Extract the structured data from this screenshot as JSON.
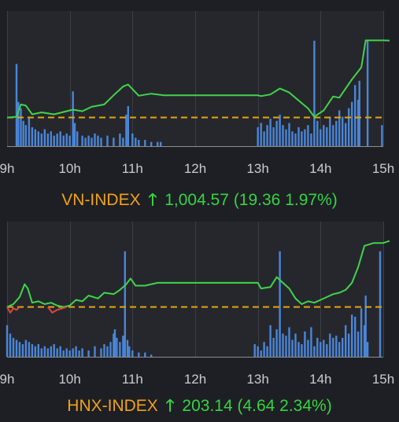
{
  "x_ticks": [
    "9h",
    "10h",
    "11h",
    "12h",
    "13h",
    "14h",
    "15h"
  ],
  "colors": {
    "background": "#1e1f24",
    "plot_background": "#26272d",
    "index_up": "#3fd54a",
    "index_down": "#e0453a",
    "reference": "#e4a50f",
    "volume": "#4a86d8",
    "label_name": "#f0a21a",
    "label_value": "#35d443"
  },
  "icons": {
    "change_direction": "arrow-up-icon"
  },
  "chart_data": [
    {
      "type": "line",
      "index_name": "VN-INDEX",
      "arrow": "🡑",
      "value_text": "1,004.57 (19.36 1.97%)",
      "close": 1004.57,
      "change": 19.36,
      "change_pct": 1.97,
      "reference": 985.21,
      "ylim": [
        978,
        1012
      ],
      "vol_max": 100,
      "x_ticks": [
        "9h",
        "10h",
        "11h",
        "12h",
        "13h",
        "14h",
        "15h"
      ],
      "grid": "vertical",
      "series": [
        {
          "values": [
            [
              9.0,
              985.2
            ],
            [
              9.15,
              985.4
            ],
            [
              9.22,
              988.5
            ],
            [
              9.3,
              988.2
            ],
            [
              9.4,
              986.0
            ],
            [
              9.55,
              986.5
            ],
            [
              9.75,
              986.0
            ],
            [
              9.9,
              986.6
            ],
            [
              10.05,
              987.2
            ],
            [
              10.2,
              986.8
            ],
            [
              10.35,
              987.9
            ],
            [
              10.55,
              988.5
            ],
            [
              10.7,
              990.8
            ],
            [
              10.85,
              993.0
            ],
            [
              10.93,
              993.5
            ],
            [
              11.1,
              990.7
            ],
            [
              11.3,
              991.2
            ],
            [
              11.5,
              990.8
            ],
            [
              12.0,
              990.8
            ],
            [
              12.5,
              990.8
            ],
            [
              13.0,
              990.8
            ],
            [
              13.05,
              990.6
            ],
            [
              13.2,
              991.0
            ],
            [
              13.35,
              992.5
            ],
            [
              13.5,
              991.5
            ],
            [
              13.65,
              989.5
            ],
            [
              13.8,
              987.5
            ],
            [
              13.9,
              985.4
            ],
            [
              14.05,
              987.0
            ],
            [
              14.2,
              990.5
            ],
            [
              14.3,
              990.2
            ],
            [
              14.5,
              994.8
            ],
            [
              14.65,
              997.8
            ],
            [
              14.72,
              1004.6
            ],
            [
              14.85,
              1004.6
            ],
            [
              15.0,
              1004.6
            ],
            [
              15.1,
              1004.57
            ]
          ]
        }
      ],
      "volume": [
        [
          9.15,
          78
        ],
        [
          9.18,
          42
        ],
        [
          9.22,
          36
        ],
        [
          9.26,
          24
        ],
        [
          9.3,
          20
        ],
        [
          9.35,
          28
        ],
        [
          9.4,
          18
        ],
        [
          9.45,
          16
        ],
        [
          9.5,
          14
        ],
        [
          9.55,
          12
        ],
        [
          9.6,
          16
        ],
        [
          9.65,
          12
        ],
        [
          9.7,
          14
        ],
        [
          9.75,
          10
        ],
        [
          9.8,
          12
        ],
        [
          9.85,
          14
        ],
        [
          9.9,
          10
        ],
        [
          9.95,
          12
        ],
        [
          10.0,
          10
        ],
        [
          10.05,
          52
        ],
        [
          10.08,
          22
        ],
        [
          10.12,
          14
        ],
        [
          10.2,
          10
        ],
        [
          10.25,
          8
        ],
        [
          10.3,
          10
        ],
        [
          10.35,
          8
        ],
        [
          10.4,
          12
        ],
        [
          10.45,
          10
        ],
        [
          10.5,
          8
        ],
        [
          10.6,
          10
        ],
        [
          10.7,
          8
        ],
        [
          10.8,
          12
        ],
        [
          10.85,
          8
        ],
        [
          10.9,
          30
        ],
        [
          10.93,
          38
        ],
        [
          11.0,
          12
        ],
        [
          11.05,
          8
        ],
        [
          11.1,
          6
        ],
        [
          11.2,
          6
        ],
        [
          11.3,
          4
        ],
        [
          11.4,
          4
        ],
        [
          11.45,
          4
        ],
        [
          13.0,
          18
        ],
        [
          13.05,
          22
        ],
        [
          13.1,
          14
        ],
        [
          13.15,
          20
        ],
        [
          13.2,
          26
        ],
        [
          13.25,
          18
        ],
        [
          13.3,
          24
        ],
        [
          13.35,
          30
        ],
        [
          13.4,
          20
        ],
        [
          13.45,
          16
        ],
        [
          13.5,
          22
        ],
        [
          13.55,
          14
        ],
        [
          13.6,
          12
        ],
        [
          13.65,
          18
        ],
        [
          13.7,
          14
        ],
        [
          13.75,
          16
        ],
        [
          13.8,
          20
        ],
        [
          13.85,
          12
        ],
        [
          13.9,
          100
        ],
        [
          13.95,
          24
        ],
        [
          14.0,
          16
        ],
        [
          14.05,
          20
        ],
        [
          14.1,
          18
        ],
        [
          14.15,
          28
        ],
        [
          14.2,
          20
        ],
        [
          14.25,
          24
        ],
        [
          14.3,
          34
        ],
        [
          14.35,
          28
        ],
        [
          14.4,
          22
        ],
        [
          14.45,
          36
        ],
        [
          14.5,
          42
        ],
        [
          14.55,
          58
        ],
        [
          14.6,
          44
        ],
        [
          14.62,
          62
        ],
        [
          14.75,
          100
        ],
        [
          14.98,
          20
        ]
      ]
    },
    {
      "type": "line",
      "index_name": "HNX-INDEX",
      "arrow": "🡑",
      "value_text": "203.14 (4.64 2.34%)",
      "close": 203.14,
      "change": 4.64,
      "change_pct": 2.34,
      "reference": 198.5,
      "ylim": [
        195,
        204.5
      ],
      "vol_max": 100,
      "x_ticks": [
        "9h",
        "10h",
        "11h",
        "12h",
        "13h",
        "14h",
        "15h"
      ],
      "grid": "vertical",
      "series": [
        {
          "values": [
            [
              9.0,
              198.5
            ],
            [
              9.1,
              198.7
            ],
            [
              9.2,
              199.2
            ],
            [
              9.28,
              200.1
            ],
            [
              9.33,
              199.8
            ],
            [
              9.4,
              198.8
            ],
            [
              9.5,
              198.9
            ],
            [
              9.6,
              198.7
            ],
            [
              9.7,
              198.8
            ],
            [
              9.8,
              198.6
            ],
            [
              9.9,
              198.5
            ],
            [
              10.0,
              198.6
            ],
            [
              10.1,
              199.0
            ],
            [
              10.2,
              198.9
            ],
            [
              10.3,
              199.3
            ],
            [
              10.45,
              199.1
            ],
            [
              10.55,
              199.5
            ],
            [
              10.7,
              199.4
            ],
            [
              10.8,
              199.7
            ],
            [
              10.9,
              200.1
            ],
            [
              10.97,
              200.5
            ],
            [
              11.05,
              200.0
            ],
            [
              11.2,
              200.0
            ],
            [
              11.4,
              200.2
            ],
            [
              11.6,
              200.2
            ],
            [
              12.0,
              200.2
            ],
            [
              12.5,
              200.2
            ],
            [
              13.0,
              200.2
            ],
            [
              13.05,
              199.8
            ],
            [
              13.2,
              199.9
            ],
            [
              13.3,
              200.6
            ],
            [
              13.4,
              200.2
            ],
            [
              13.5,
              199.8
            ],
            [
              13.6,
              199.1
            ],
            [
              13.7,
              198.7
            ],
            [
              13.8,
              198.9
            ],
            [
              13.9,
              198.8
            ],
            [
              14.0,
              199.0
            ],
            [
              14.1,
              199.2
            ],
            [
              14.2,
              199.4
            ],
            [
              14.3,
              199.5
            ],
            [
              14.4,
              199.7
            ],
            [
              14.5,
              200.2
            ],
            [
              14.6,
              201.3
            ],
            [
              14.7,
              202.8
            ],
            [
              14.85,
              203.0
            ],
            [
              15.0,
              203.0
            ],
            [
              15.1,
              203.14
            ]
          ]
        },
        {
          "values": [
            [
              9.0,
              198.5
            ],
            [
              9.05,
              198.1
            ],
            [
              9.1,
              198.4
            ],
            [
              9.15,
              198.3
            ],
            [
              9.2,
              198.5
            ]
          ]
        },
        {
          "values": [
            [
              9.65,
              198.5
            ],
            [
              9.72,
              198.1
            ],
            [
              9.8,
              198.3
            ],
            [
              9.88,
              198.4
            ],
            [
              9.95,
              198.5
            ]
          ]
        }
      ],
      "volume": [
        [
          9.0,
          30
        ],
        [
          9.05,
          22
        ],
        [
          9.1,
          18
        ],
        [
          9.15,
          16
        ],
        [
          9.2,
          14
        ],
        [
          9.25,
          12
        ],
        [
          9.3,
          16
        ],
        [
          9.35,
          14
        ],
        [
          9.4,
          12
        ],
        [
          9.45,
          10
        ],
        [
          9.5,
          12
        ],
        [
          9.55,
          8
        ],
        [
          9.6,
          10
        ],
        [
          9.65,
          8
        ],
        [
          9.7,
          10
        ],
        [
          9.75,
          12
        ],
        [
          9.8,
          8
        ],
        [
          9.85,
          10
        ],
        [
          9.9,
          6
        ],
        [
          9.95,
          8
        ],
        [
          10.0,
          6
        ],
        [
          10.05,
          8
        ],
        [
          10.1,
          10
        ],
        [
          10.15,
          6
        ],
        [
          10.2,
          8
        ],
        [
          10.3,
          6
        ],
        [
          10.4,
          10
        ],
        [
          10.5,
          8
        ],
        [
          10.55,
          12
        ],
        [
          10.6,
          10
        ],
        [
          10.65,
          14
        ],
        [
          10.7,
          22
        ],
        [
          10.72,
          26
        ],
        [
          10.75,
          18
        ],
        [
          10.8,
          14
        ],
        [
          10.85,
          20
        ],
        [
          10.88,
          100
        ],
        [
          10.92,
          16
        ],
        [
          10.95,
          10
        ],
        [
          11.0,
          6
        ],
        [
          11.1,
          4
        ],
        [
          11.2,
          4
        ],
        [
          11.3,
          2
        ],
        [
          12.95,
          12
        ],
        [
          13.0,
          10
        ],
        [
          13.05,
          6
        ],
        [
          13.1,
          14
        ],
        [
          13.15,
          10
        ],
        [
          13.2,
          30
        ],
        [
          13.25,
          18
        ],
        [
          13.3,
          26
        ],
        [
          13.35,
          100
        ],
        [
          13.4,
          22
        ],
        [
          13.45,
          20
        ],
        [
          13.5,
          28
        ],
        [
          13.55,
          16
        ],
        [
          13.6,
          22
        ],
        [
          13.65,
          14
        ],
        [
          13.7,
          12
        ],
        [
          13.75,
          24
        ],
        [
          13.8,
          16
        ],
        [
          13.85,
          28
        ],
        [
          13.9,
          10
        ],
        [
          13.95,
          18
        ],
        [
          14.0,
          14
        ],
        [
          14.05,
          16
        ],
        [
          14.1,
          12
        ],
        [
          14.15,
          22
        ],
        [
          14.2,
          18
        ],
        [
          14.25,
          20
        ],
        [
          14.3,
          14
        ],
        [
          14.35,
          18
        ],
        [
          14.4,
          30
        ],
        [
          14.45,
          22
        ],
        [
          14.5,
          40
        ],
        [
          14.55,
          38
        ],
        [
          14.6,
          24
        ],
        [
          14.65,
          46
        ],
        [
          14.7,
          30
        ],
        [
          14.72,
          58
        ],
        [
          14.75,
          14
        ],
        [
          14.95,
          100
        ]
      ]
    }
  ]
}
